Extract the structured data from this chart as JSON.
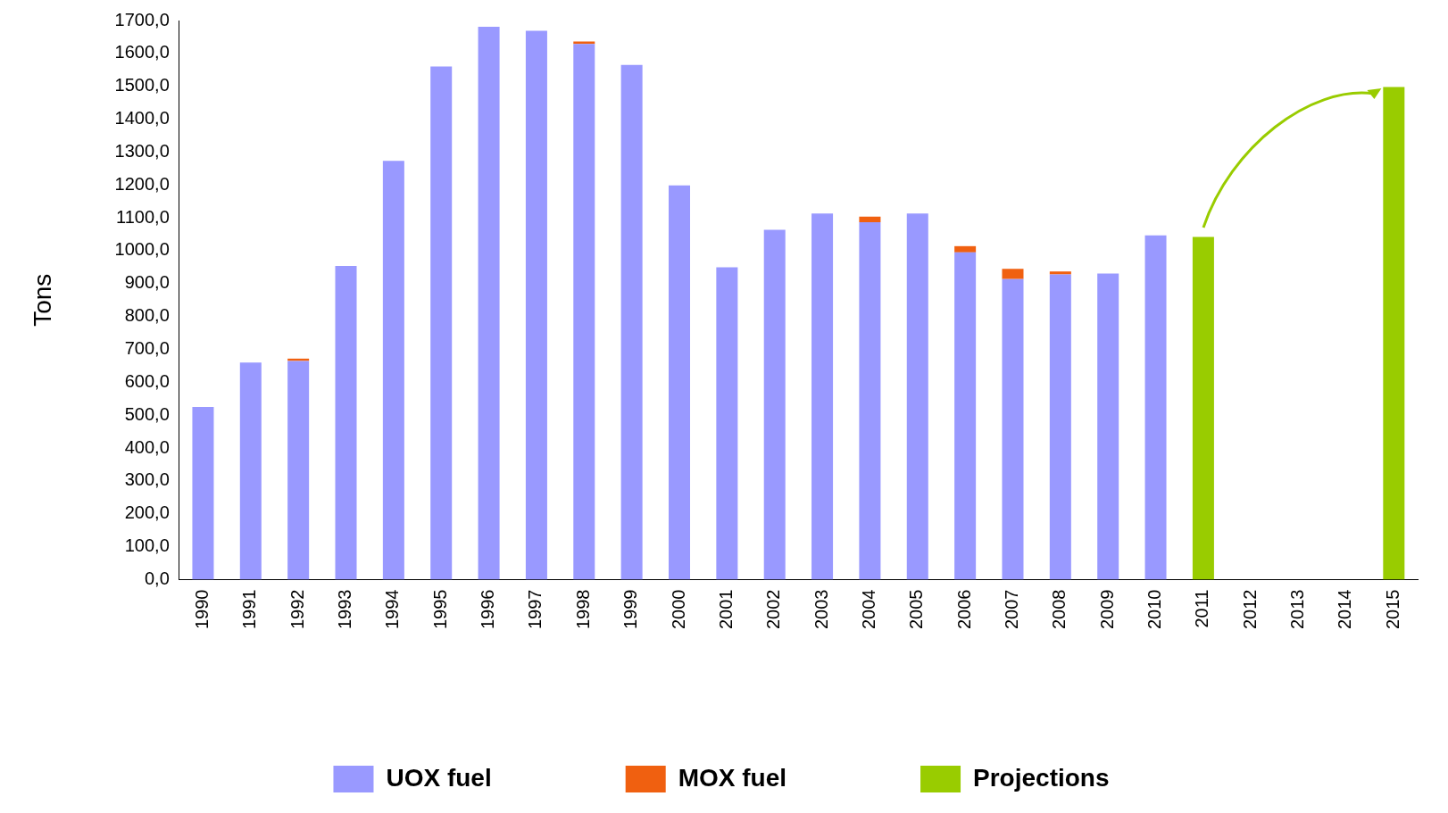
{
  "chart_data": {
    "type": "bar",
    "ylabel": "Tons",
    "stacked": true,
    "legend": "bottom",
    "grid": false,
    "categories": [
      "1990",
      "1991",
      "1992",
      "1993",
      "1994",
      "1995",
      "1996",
      "1997",
      "1998",
      "1999",
      "2000",
      "2001",
      "2002",
      "2003",
      "2004",
      "2005",
      "2006",
      "2007",
      "2008",
      "2009",
      "2010",
      "2011",
      "2012",
      "2013",
      "2014",
      "2015"
    ],
    "series": [
      {
        "name": "UOX fuel",
        "color": "#9999ff",
        "values": [
          525,
          660,
          665,
          954,
          1273,
          1560,
          1681,
          1669,
          1629,
          1565,
          1199,
          950,
          1064,
          1113,
          1087,
          1113,
          995,
          914,
          928,
          931,
          1047,
          null,
          null,
          null,
          null,
          null
        ]
      },
      {
        "name": "MOX fuel",
        "color": "#f06010",
        "values": [
          null,
          null,
          7,
          null,
          null,
          null,
          null,
          null,
          7,
          null,
          null,
          null,
          null,
          null,
          17,
          null,
          19,
          31,
          9,
          null,
          null,
          null,
          null,
          null,
          null,
          null
        ]
      },
      {
        "name": "Projections",
        "color": "#99cc00",
        "values": [
          null,
          null,
          null,
          null,
          null,
          null,
          null,
          null,
          null,
          null,
          null,
          null,
          null,
          null,
          null,
          null,
          null,
          null,
          null,
          null,
          null,
          1042,
          null,
          null,
          null,
          1498
        ]
      }
    ],
    "ylim": [
      0,
      1700
    ],
    "yticks": [
      {
        "value": 0,
        "label": "0,0"
      },
      {
        "value": 100,
        "label": "100,0"
      },
      {
        "value": 200,
        "label": "200,0"
      },
      {
        "value": 300,
        "label": "300,0"
      },
      {
        "value": 400,
        "label": "400,0"
      },
      {
        "value": 500,
        "label": "500,0"
      },
      {
        "value": 600,
        "label": "600,0"
      },
      {
        "value": 700,
        "label": "700,0"
      },
      {
        "value": 800,
        "label": "800,0"
      },
      {
        "value": 900,
        "label": "900,0"
      },
      {
        "value": 1000,
        "label": "1000,0"
      },
      {
        "value": 1100,
        "label": "1100,0"
      },
      {
        "value": 1200,
        "label": "1200,0"
      },
      {
        "value": 1300,
        "label": "1300,0"
      },
      {
        "value": 1400,
        "label": "1400,0"
      },
      {
        "value": 1500,
        "label": "1500,0"
      },
      {
        "value": 1600,
        "label": "1600,0"
      },
      {
        "value": 1700,
        "label": "1700,0"
      }
    ]
  }
}
